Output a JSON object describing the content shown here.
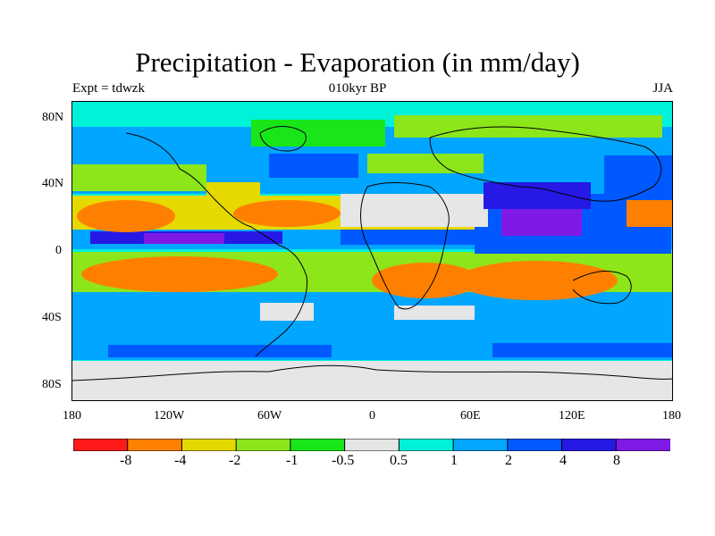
{
  "title": "Precipitation - Evaporation (in mm/day)",
  "subtitle_left": "Expt = tdwzk",
  "subtitle_center": "010kyr BP",
  "subtitle_right": "JJA",
  "lat_ticks": [
    "80N",
    "40N",
    "0",
    "40S",
    "80S"
  ],
  "lon_ticks": [
    "180",
    "120W",
    "60W",
    "0",
    "60E",
    "120E",
    "180"
  ],
  "colorbar": {
    "colors": [
      "#ff1a1a",
      "#ff8000",
      "#e6d900",
      "#8ce619",
      "#19e619",
      "#e6e6e6",
      "#00f2d9",
      "#00a6ff",
      "#0059ff",
      "#2619e6",
      "#7f19e6"
    ],
    "labels": [
      "-8",
      "-4",
      "-2",
      "-1",
      "-0.5",
      "0.5",
      "1",
      "2",
      "4",
      "8"
    ]
  }
}
